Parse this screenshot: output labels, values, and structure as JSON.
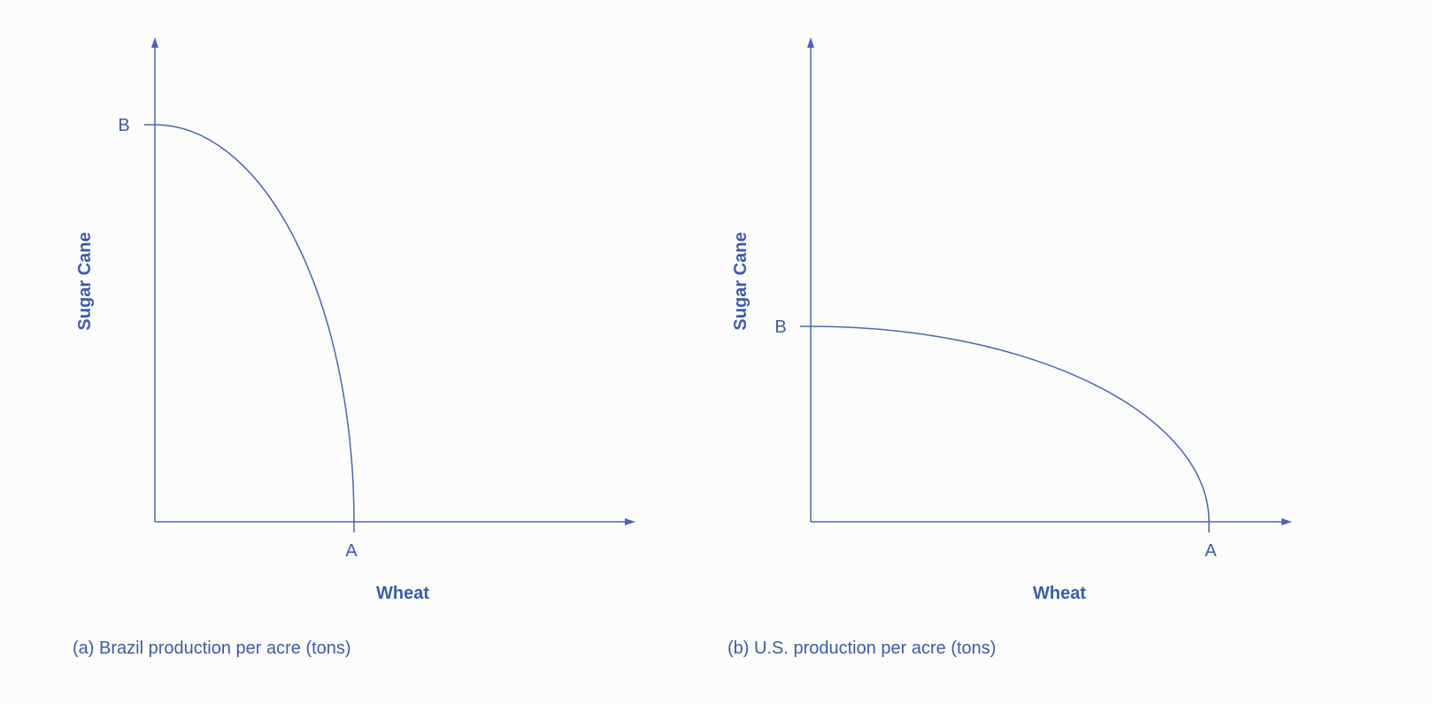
{
  "panels": [
    {
      "caption": "(a) Brazil production per acre (tons)",
      "y_axis_label": "Sugar Cane",
      "x_axis_label": "Wheat",
      "y_point_label": "B",
      "x_point_label": "A"
    },
    {
      "caption": "(b) U.S. production per acre (tons)",
      "y_axis_label": "Sugar Cane",
      "x_axis_label": "Wheat",
      "y_point_label": "B",
      "x_point_label": "A"
    }
  ]
}
